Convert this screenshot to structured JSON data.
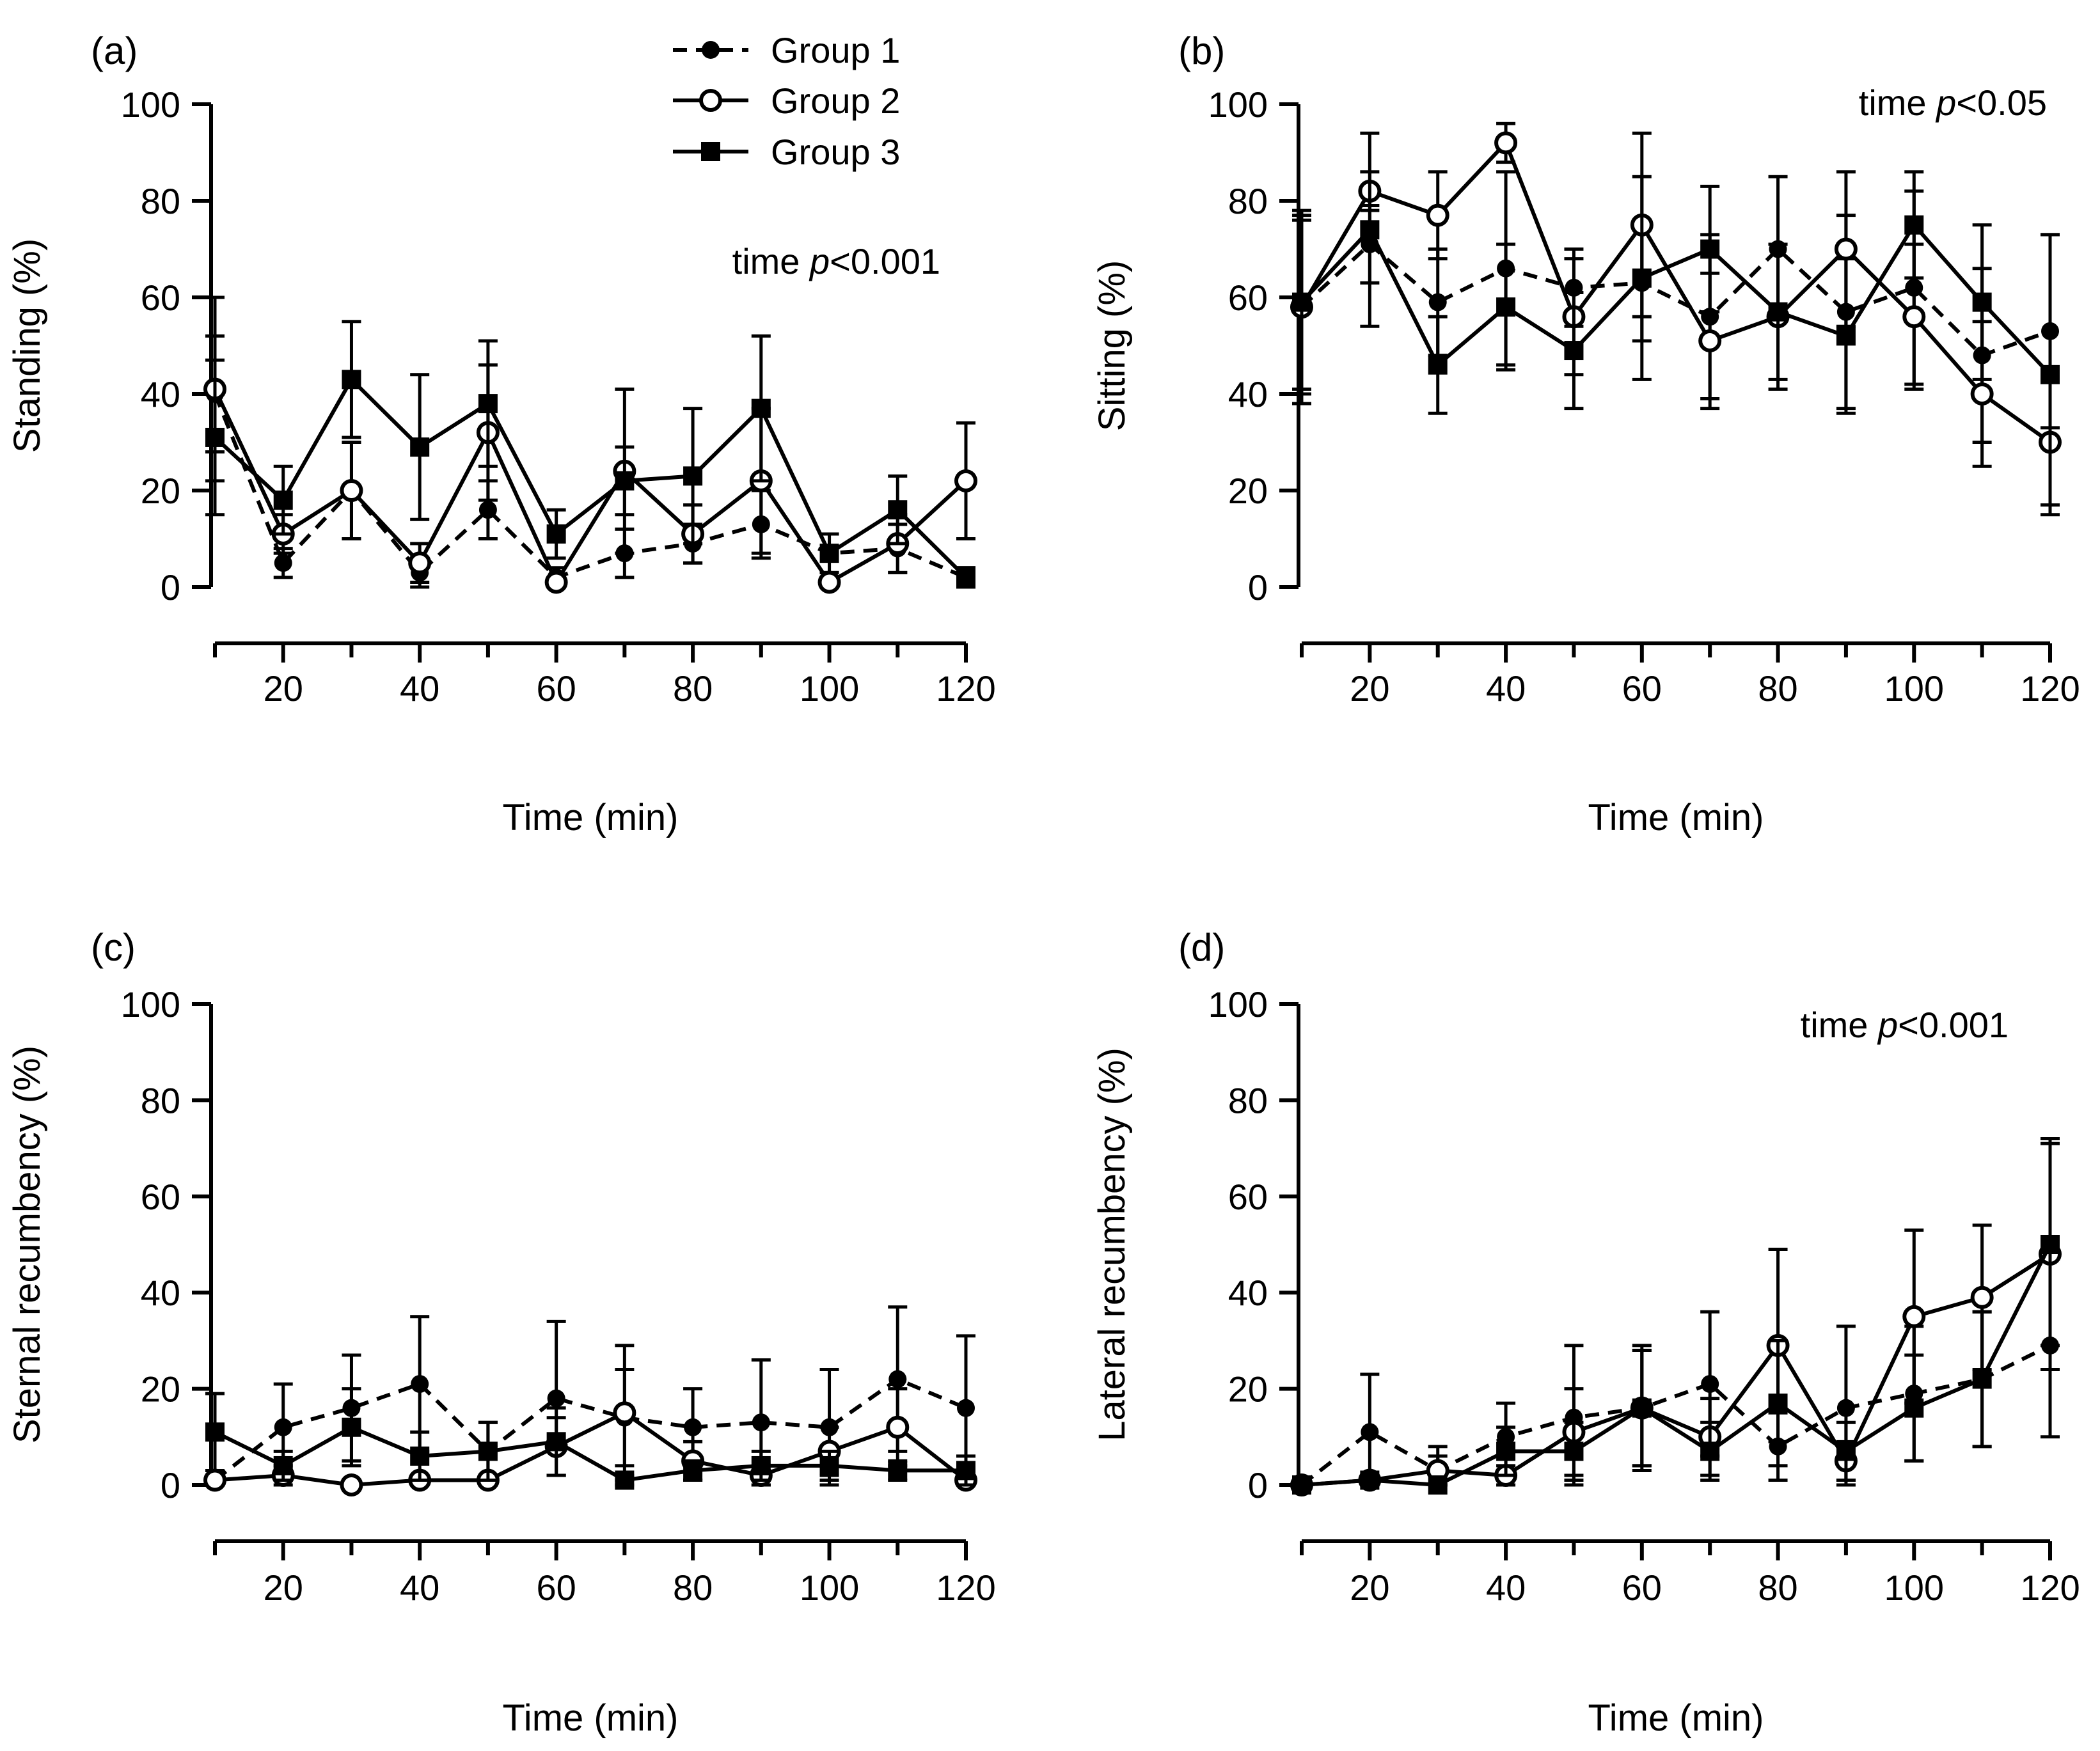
{
  "legend": {
    "entries": [
      {
        "label": "Group 1",
        "marker": "filled-circle",
        "dash": true
      },
      {
        "label": "Group 2",
        "marker": "open-circle",
        "dash": false
      },
      {
        "label": "Group 3",
        "marker": "filled-square",
        "dash": false
      }
    ]
  },
  "chart_data": [
    {
      "type": "line",
      "panel": "(a)",
      "xlabel": "Time (min)",
      "ylabel": "Standing (%)",
      "annotation": {
        "prefix": "time ",
        "italic": "p",
        "suffix": "<0.001"
      },
      "xlim": [
        10,
        120
      ],
      "ylim": [
        0,
        100
      ],
      "xticks": [
        20,
        40,
        60,
        80,
        100,
        120
      ],
      "yticks": [
        0,
        20,
        40,
        60,
        80,
        100
      ],
      "x": [
        10,
        20,
        30,
        40,
        50,
        60,
        70,
        80,
        90,
        100,
        110,
        120
      ],
      "series": [
        {
          "name": "Group 1",
          "values": [
            40,
            5,
            20,
            3,
            16,
            2,
            7,
            9,
            13,
            7,
            8,
            2
          ],
          "errors": [
            12,
            3,
            10,
            3,
            6,
            2,
            5,
            4,
            7,
            4,
            5,
            2
          ]
        },
        {
          "name": "Group 2",
          "values": [
            41,
            11,
            20,
            5,
            32,
            1,
            24,
            11,
            22,
            1,
            9,
            22
          ],
          "errors": [
            19,
            4,
            10,
            4,
            14,
            1,
            17,
            6,
            15,
            1,
            6,
            12
          ]
        },
        {
          "name": "Group 3",
          "values": [
            31,
            18,
            43,
            29,
            38,
            11,
            22,
            23,
            37,
            7,
            16,
            2
          ],
          "errors": [
            16,
            7,
            12,
            15,
            13,
            5,
            7,
            14,
            15,
            4,
            7,
            2
          ]
        }
      ]
    },
    {
      "type": "line",
      "panel": "(b)",
      "xlabel": "Time (min)",
      "ylabel": "Sitting (%)",
      "annotation": {
        "prefix": "time ",
        "italic": "p",
        "suffix": "<0.05"
      },
      "xlim": [
        10,
        120
      ],
      "ylim": [
        0,
        100
      ],
      "xticks": [
        20,
        40,
        60,
        80,
        100,
        120
      ],
      "yticks": [
        0,
        20,
        40,
        60,
        80,
        100
      ],
      "x": [
        10,
        20,
        30,
        40,
        50,
        60,
        70,
        80,
        90,
        100,
        110,
        120
      ],
      "series": [
        {
          "name": "Group 1",
          "values": [
            58,
            71,
            59,
            66,
            62,
            63,
            56,
            70,
            57,
            62,
            48,
            53
          ],
          "errors": [
            18,
            8,
            11,
            20,
            8,
            12,
            17,
            15,
            20,
            20,
            18,
            20
          ]
        },
        {
          "name": "Group 2",
          "values": [
            58,
            82,
            77,
            92,
            56,
            75,
            51,
            56,
            70,
            56,
            40,
            30
          ],
          "errors": [
            20,
            4,
            9,
            4,
            12,
            19,
            14,
            15,
            16,
            15,
            15,
            13
          ]
        },
        {
          "name": "Group 3",
          "values": [
            59,
            74,
            46,
            58,
            49,
            64,
            70,
            57,
            52,
            75,
            59,
            44
          ],
          "errors": [
            18,
            20,
            10,
            13,
            12,
            21,
            13,
            14,
            16,
            11,
            16,
            29
          ]
        }
      ]
    },
    {
      "type": "line",
      "panel": "(c)",
      "xlabel": "Time (min)",
      "ylabel": "Sternal recumbency  (%)",
      "annotation": null,
      "xlim": [
        10,
        120
      ],
      "ylim": [
        0,
        100
      ],
      "xticks": [
        20,
        40,
        60,
        80,
        100,
        120
      ],
      "yticks": [
        0,
        20,
        40,
        60,
        80,
        100
      ],
      "x": [
        10,
        20,
        30,
        40,
        50,
        60,
        70,
        80,
        90,
        100,
        110,
        120
      ],
      "series": [
        {
          "name": "Group 1",
          "values": [
            1,
            12,
            16,
            21,
            7,
            18,
            14,
            12,
            13,
            12,
            22,
            16
          ],
          "errors": [
            1,
            9,
            11,
            14,
            6,
            16,
            10,
            8,
            13,
            12,
            15,
            15
          ]
        },
        {
          "name": "Group 2",
          "values": [
            1,
            2,
            0,
            1,
            1,
            8,
            15,
            5,
            2,
            7,
            12,
            1
          ],
          "errors": [
            1,
            2,
            0,
            1,
            1,
            6,
            14,
            4,
            2,
            5,
            8,
            1
          ]
        },
        {
          "name": "Group 3",
          "values": [
            11,
            4,
            12,
            6,
            7,
            9,
            1,
            3,
            4,
            4,
            3,
            3
          ],
          "errors": [
            8,
            3,
            8,
            5,
            6,
            7,
            1,
            2,
            3,
            3,
            2,
            3
          ]
        }
      ]
    },
    {
      "type": "line",
      "panel": "(d)",
      "xlabel": "Time (min)",
      "ylabel": "Lateral recumbency  (%)",
      "annotation": {
        "prefix": "time ",
        "italic": "p",
        "suffix": "<0.001"
      },
      "xlim": [
        10,
        120
      ],
      "ylim": [
        0,
        100
      ],
      "xticks": [
        20,
        40,
        60,
        80,
        100,
        120
      ],
      "yticks": [
        0,
        20,
        40,
        60,
        80,
        100
      ],
      "x": [
        10,
        20,
        30,
        40,
        50,
        60,
        70,
        80,
        90,
        100,
        110,
        120
      ],
      "series": [
        {
          "name": "Group 1",
          "values": [
            0,
            11,
            3,
            10,
            14,
            16,
            21,
            8,
            16,
            19,
            22,
            29
          ],
          "errors": [
            0,
            12,
            5,
            7,
            15,
            12,
            15,
            7,
            17,
            14,
            14,
            19
          ]
        },
        {
          "name": "Group 2",
          "values": [
            0,
            1,
            3,
            2,
            11,
            16,
            10,
            29,
            5,
            35,
            39,
            48
          ],
          "errors": [
            0,
            1,
            3,
            2,
            9,
            12,
            8,
            20,
            4,
            18,
            15,
            24
          ]
        },
        {
          "name": "Group 3",
          "values": [
            0,
            1,
            0,
            7,
            7,
            16,
            7,
            17,
            7,
            16,
            22,
            50
          ],
          "errors": [
            0,
            1,
            0,
            5,
            6,
            13,
            6,
            13,
            6,
            11,
            14,
            21
          ]
        }
      ]
    }
  ]
}
